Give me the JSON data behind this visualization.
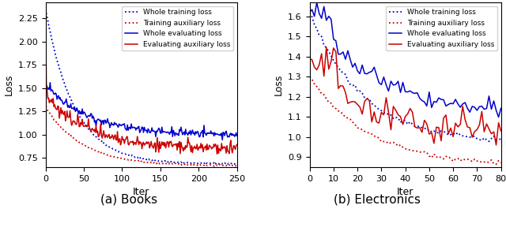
{
  "books": {
    "xlim": [
      0,
      250
    ],
    "ylim": [
      0.65,
      2.42
    ],
    "yticks": [
      0.75,
      1.0,
      1.25,
      1.5,
      1.75,
      2.0,
      2.25
    ],
    "xticks": [
      0,
      50,
      100,
      150,
      200,
      250
    ],
    "xlabel": "Iter",
    "ylabel": "Loss",
    "title": "(a) Books"
  },
  "electronics": {
    "xlim": [
      0,
      80
    ],
    "ylim": [
      0.85,
      1.67
    ],
    "yticks": [
      0.9,
      1.0,
      1.1,
      1.2,
      1.3,
      1.4,
      1.5,
      1.6
    ],
    "xticks": [
      0,
      10,
      20,
      30,
      40,
      50,
      60,
      70,
      80
    ],
    "xlabel": "Iter",
    "ylabel": "Loss",
    "title": "(b) Electronics"
  },
  "legend_labels": [
    "Whole training loss",
    "Training auxiliary loss",
    "Whole evaluating loss",
    "Evaluating auxiliary loss"
  ],
  "blue_color": "#0000cc",
  "red_color": "#cc0000"
}
